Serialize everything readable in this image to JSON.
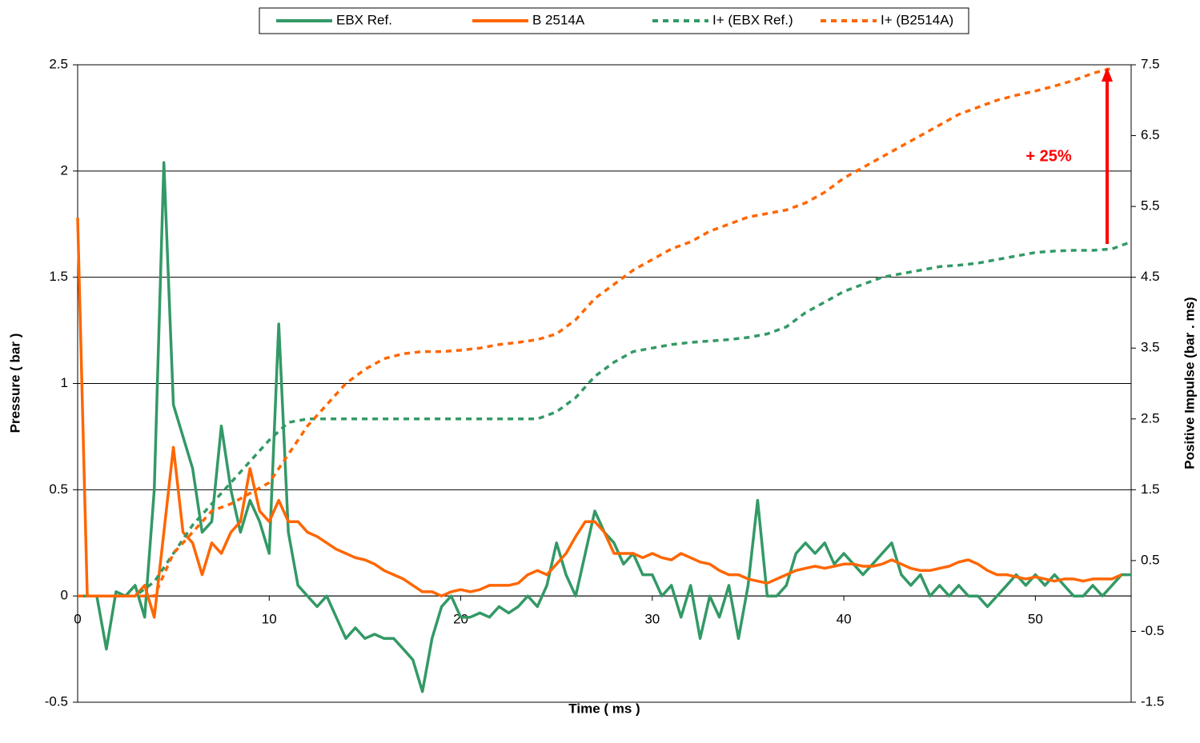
{
  "chart_data": {
    "type": "line",
    "xlabel": "Time ( ms )",
    "ylabel": "Pressure ( bar )",
    "y2label": "Positive Impulse (bar . ms)",
    "annotation": "+ 25%",
    "xlim": [
      0,
      55
    ],
    "xticks": [
      0,
      10,
      20,
      30,
      40,
      50
    ],
    "ylim": [
      -0.5,
      2.5
    ],
    "yticks": [
      -0.5,
      0,
      0.5,
      1,
      1.5,
      2,
      2.5
    ],
    "y2lim": [
      -1.5,
      7.5
    ],
    "y2ticks": [
      -1.5,
      -0.5,
      0.5,
      1.5,
      2.5,
      3.5,
      4.5,
      5.5,
      6.5,
      7.5
    ],
    "grid": true,
    "legend": "top",
    "x": [
      0,
      0.5,
      1,
      1.5,
      2,
      2.5,
      3,
      3.5,
      4,
      4.5,
      5,
      5.5,
      6,
      6.5,
      7,
      7.5,
      8,
      8.5,
      9,
      9.5,
      10,
      10.5,
      11,
      11.5,
      12,
      12.5,
      13,
      13.5,
      14,
      14.5,
      15,
      15.5,
      16,
      16.5,
      17,
      17.5,
      18,
      18.5,
      19,
      19.5,
      20,
      20.5,
      21,
      21.5,
      22,
      22.5,
      23,
      23.5,
      24,
      24.5,
      25,
      25.5,
      26,
      26.5,
      27,
      27.5,
      28,
      28.5,
      29,
      29.5,
      30,
      30.5,
      31,
      31.5,
      32,
      32.5,
      33,
      33.5,
      34,
      34.5,
      35,
      35.5,
      36,
      36.5,
      37,
      37.5,
      38,
      38.5,
      39,
      39.5,
      40,
      40.5,
      41,
      41.5,
      42,
      42.5,
      43,
      43.5,
      44,
      44.5,
      45,
      45.5,
      46,
      46.5,
      47,
      47.5,
      48,
      48.5,
      49,
      49.5,
      50,
      50.5,
      51,
      51.5,
      52,
      52.5,
      53,
      53.5,
      54,
      54.5,
      55
    ],
    "series": [
      {
        "name": "EBX Ref.",
        "color": "#339966",
        "dash": false,
        "axis": "y",
        "values": [
          0,
          0,
          0,
          -0.25,
          0.02,
          0,
          0.05,
          -0.1,
          0.5,
          2.04,
          0.9,
          0.75,
          0.6,
          0.3,
          0.35,
          0.8,
          0.5,
          0.3,
          0.45,
          0.35,
          0.2,
          1.28,
          0.3,
          0.05,
          0,
          -0.05,
          0,
          -0.1,
          -0.2,
          -0.15,
          -0.2,
          -0.18,
          -0.2,
          -0.2,
          -0.25,
          -0.3,
          -0.45,
          -0.2,
          -0.05,
          0,
          -0.1,
          -0.1,
          -0.08,
          -0.1,
          -0.05,
          -0.08,
          -0.05,
          0,
          -0.05,
          0.05,
          0.25,
          0.1,
          0,
          0.2,
          0.4,
          0.3,
          0.25,
          0.15,
          0.2,
          0.1,
          0.1,
          0,
          0.05,
          -0.1,
          0.05,
          -0.2,
          0,
          -0.1,
          0.05,
          -0.2,
          0.05,
          0.45,
          0,
          0,
          0.05,
          0.2,
          0.25,
          0.2,
          0.25,
          0.15,
          0.2,
          0.15,
          0.1,
          0.15,
          0.2,
          0.25,
          0.1,
          0.05,
          0.1,
          0,
          0.05,
          0,
          0.05,
          0,
          0,
          -0.05,
          0,
          0.05,
          0.1,
          0.05,
          0.1,
          0.05,
          0.1,
          0.05,
          0,
          0,
          0.05,
          0,
          0.05,
          0.1,
          0.1
        ]
      },
      {
        "name": "B 2514A",
        "color": "#ff6600",
        "dash": false,
        "axis": "y",
        "values": [
          1.78,
          0,
          0,
          0,
          0,
          0,
          0,
          0.05,
          -0.1,
          0.3,
          0.7,
          0.3,
          0.25,
          0.1,
          0.25,
          0.2,
          0.3,
          0.35,
          0.6,
          0.4,
          0.35,
          0.45,
          0.35,
          0.35,
          0.3,
          0.28,
          0.25,
          0.22,
          0.2,
          0.18,
          0.17,
          0.15,
          0.12,
          0.1,
          0.08,
          0.05,
          0.02,
          0.02,
          0,
          0.02,
          0.03,
          0.02,
          0.03,
          0.05,
          0.05,
          0.05,
          0.06,
          0.1,
          0.12,
          0.1,
          0.15,
          0.2,
          0.28,
          0.35,
          0.35,
          0.3,
          0.2,
          0.2,
          0.2,
          0.18,
          0.2,
          0.18,
          0.17,
          0.2,
          0.18,
          0.16,
          0.15,
          0.12,
          0.1,
          0.1,
          0.08,
          0.07,
          0.06,
          0.08,
          0.1,
          0.12,
          0.13,
          0.14,
          0.13,
          0.14,
          0.15,
          0.15,
          0.14,
          0.14,
          0.15,
          0.17,
          0.15,
          0.13,
          0.12,
          0.12,
          0.13,
          0.14,
          0.16,
          0.17,
          0.15,
          0.12,
          0.1,
          0.1,
          0.09,
          0.08,
          0.09,
          0.08,
          0.07,
          0.08,
          0.08,
          0.07,
          0.08,
          0.08,
          0.08,
          0.1,
          null
        ]
      },
      {
        "name": "I+ (EBX Ref.)",
        "color": "#339966",
        "dash": true,
        "axis": "y2",
        "x": [
          0,
          1,
          2,
          3,
          4,
          5,
          6,
          7,
          8,
          9,
          10,
          11,
          12,
          13,
          14,
          15,
          16,
          17,
          18,
          19,
          20,
          21,
          22,
          23,
          24,
          25,
          26,
          27,
          28,
          29,
          30,
          31,
          32,
          33,
          34,
          35,
          36,
          37,
          38,
          39,
          40,
          41,
          42,
          43,
          44,
          45,
          46,
          47,
          48,
          49,
          50,
          51,
          52,
          53,
          54,
          55
        ],
        "values": [
          0,
          0,
          0,
          0,
          0.2,
          0.6,
          1.0,
          1.3,
          1.6,
          1.9,
          2.2,
          2.45,
          2.5,
          2.5,
          2.5,
          2.5,
          2.5,
          2.5,
          2.5,
          2.5,
          2.5,
          2.5,
          2.5,
          2.5,
          2.5,
          2.6,
          2.8,
          3.1,
          3.3,
          3.45,
          3.5,
          3.55,
          3.58,
          3.6,
          3.62,
          3.65,
          3.7,
          3.8,
          4.0,
          4.15,
          4.3,
          4.4,
          4.5,
          4.55,
          4.6,
          4.65,
          4.67,
          4.7,
          4.75,
          4.8,
          4.85,
          4.87,
          4.88,
          4.88,
          4.9,
          5.0
        ]
      },
      {
        "name": "I+ (B2514A)",
        "color": "#ff6600",
        "dash": true,
        "axis": "y2",
        "x": [
          0,
          1,
          2,
          3,
          4,
          5,
          6,
          7,
          8,
          9,
          10,
          11,
          12,
          13,
          14,
          15,
          16,
          17,
          18,
          19,
          20,
          21,
          22,
          23,
          24,
          25,
          26,
          27,
          28,
          29,
          30,
          31,
          32,
          33,
          34,
          35,
          36,
          37,
          38,
          39,
          40,
          41,
          42,
          43,
          44,
          45,
          46,
          47,
          48,
          49,
          50,
          51,
          52,
          53,
          54,
          55
        ],
        "values": [
          0,
          0,
          0,
          0,
          0,
          0.6,
          0.9,
          1.2,
          1.3,
          1.45,
          1.6,
          2.0,
          2.4,
          2.7,
          3.0,
          3.2,
          3.35,
          3.42,
          3.45,
          3.45,
          3.47,
          3.5,
          3.55,
          3.58,
          3.62,
          3.7,
          3.9,
          4.2,
          4.4,
          4.6,
          4.75,
          4.9,
          5.0,
          5.15,
          5.25,
          5.35,
          5.4,
          5.45,
          5.55,
          5.7,
          5.9,
          6.05,
          6.2,
          6.35,
          6.5,
          6.65,
          6.8,
          6.9,
          7.0,
          7.07,
          7.13,
          7.2,
          7.28,
          7.38,
          7.45,
          null
        ]
      }
    ]
  }
}
